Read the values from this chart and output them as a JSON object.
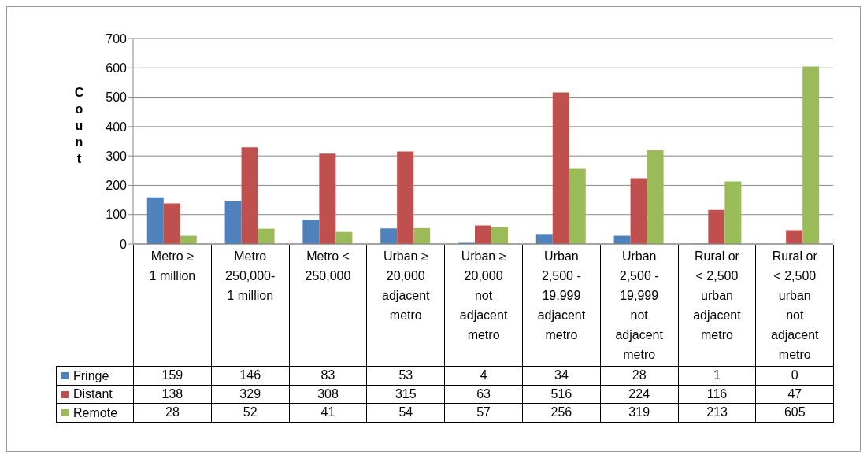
{
  "chart_data": {
    "type": "bar",
    "categories": [
      "Metro ≥\n1 million",
      "Metro\n250,000-\n1 million",
      "Metro <\n250,000",
      "Urban ≥\n20,000\nadjacent\nmetro",
      "Urban ≥\n20,000\nnot\nadjacent\nmetro",
      "Urban\n2,500 -\n19,999\nadjacent\nmetro",
      "Urban\n2,500 -\n19,999\nnot\nadjacent\nmetro",
      "Rural or\n< 2,500\nurban\nadjacent\nmetro",
      "Rural or\n< 2,500\nurban\nnot\nadjacent\nmetro"
    ],
    "series": [
      {
        "name": "Fringe",
        "color": "#4f81bd",
        "values": [
          159,
          146,
          83,
          53,
          4,
          34,
          28,
          1,
          0
        ]
      },
      {
        "name": "Distant",
        "color": "#c0504d",
        "values": [
          138,
          329,
          308,
          315,
          63,
          516,
          224,
          116,
          47
        ]
      },
      {
        "name": "Remote",
        "color": "#9bbb59",
        "values": [
          28,
          52,
          41,
          54,
          57,
          256,
          319,
          213,
          605
        ]
      }
    ],
    "ylabel": "Count",
    "ylim": [
      0,
      700
    ],
    "yticks": [
      0,
      100,
      200,
      300,
      400,
      500,
      600,
      700
    ],
    "grid": "y",
    "legend": "bottom left",
    "data_labels": true
  }
}
